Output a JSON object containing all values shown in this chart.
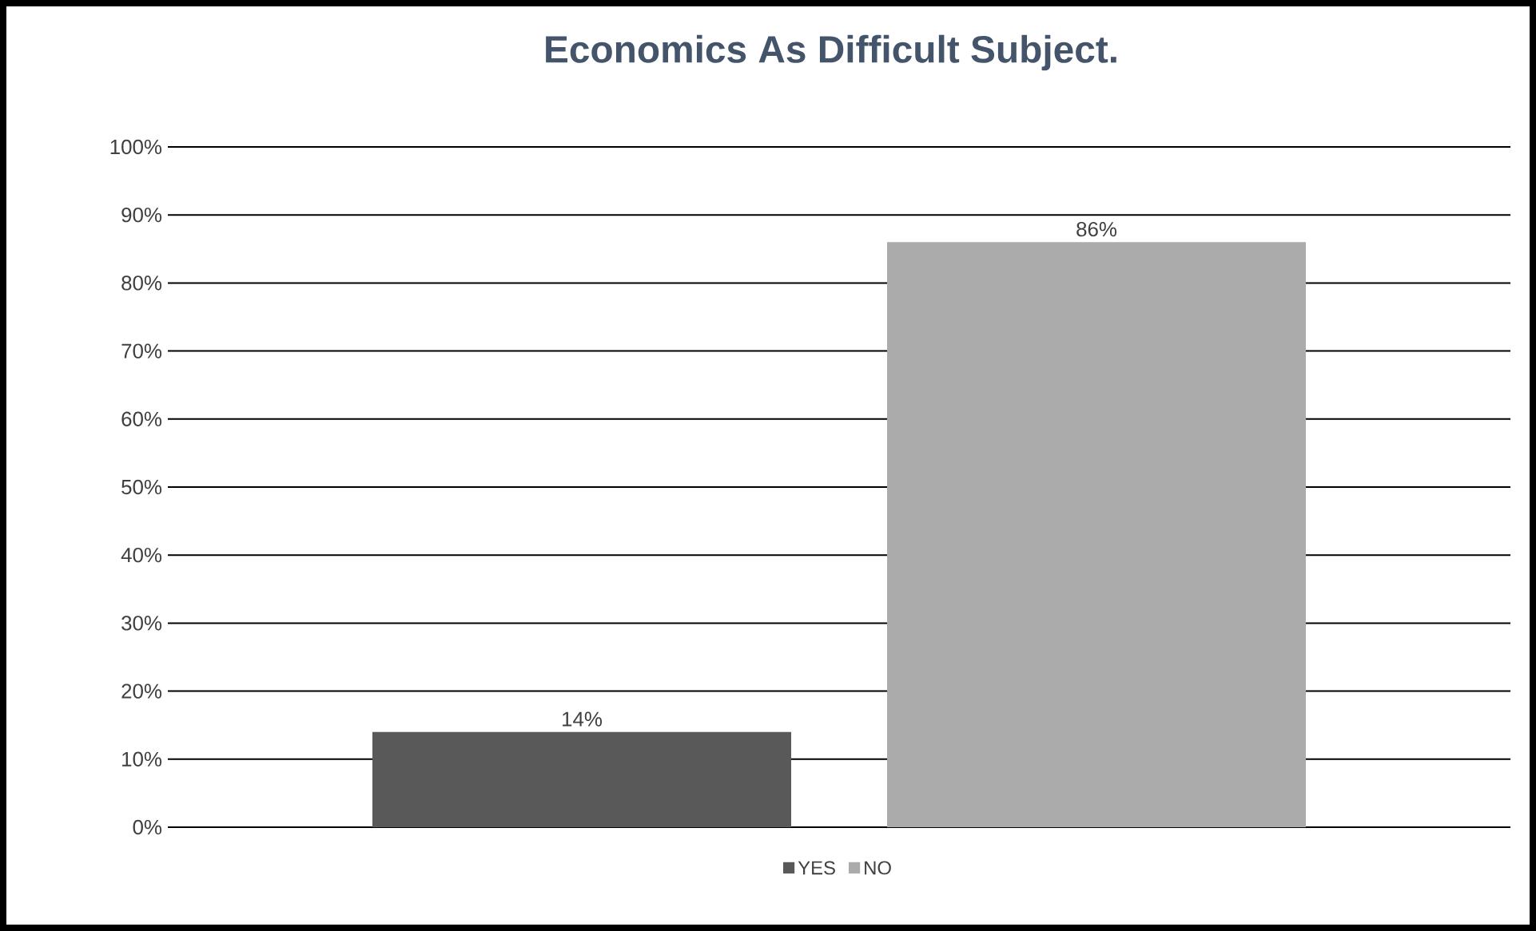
{
  "chart_data": {
    "type": "bar",
    "title": "Economics As Difficult Subject.",
    "categories": [
      null
    ],
    "series": [
      {
        "name": "YES",
        "color": "#595959",
        "values": [
          14
        ],
        "value_labels": [
          "14%"
        ]
      },
      {
        "name": "NO",
        "color": "#ababab",
        "values": [
          86
        ],
        "value_labels": [
          "86%"
        ]
      }
    ],
    "ylim": [
      0,
      100
    ],
    "yticks": [
      {
        "value": 0,
        "label": "0%"
      },
      {
        "value": 10,
        "label": "10%"
      },
      {
        "value": 20,
        "label": "20%"
      },
      {
        "value": 30,
        "label": "30%"
      },
      {
        "value": 40,
        "label": "40%"
      },
      {
        "value": 50,
        "label": "50%"
      },
      {
        "value": 60,
        "label": "60%"
      },
      {
        "value": 70,
        "label": "70%"
      },
      {
        "value": 80,
        "label": "80%"
      },
      {
        "value": 90,
        "label": "90%"
      },
      {
        "value": 100,
        "label": "100%"
      }
    ],
    "grid": "y",
    "legend": "bottom"
  }
}
